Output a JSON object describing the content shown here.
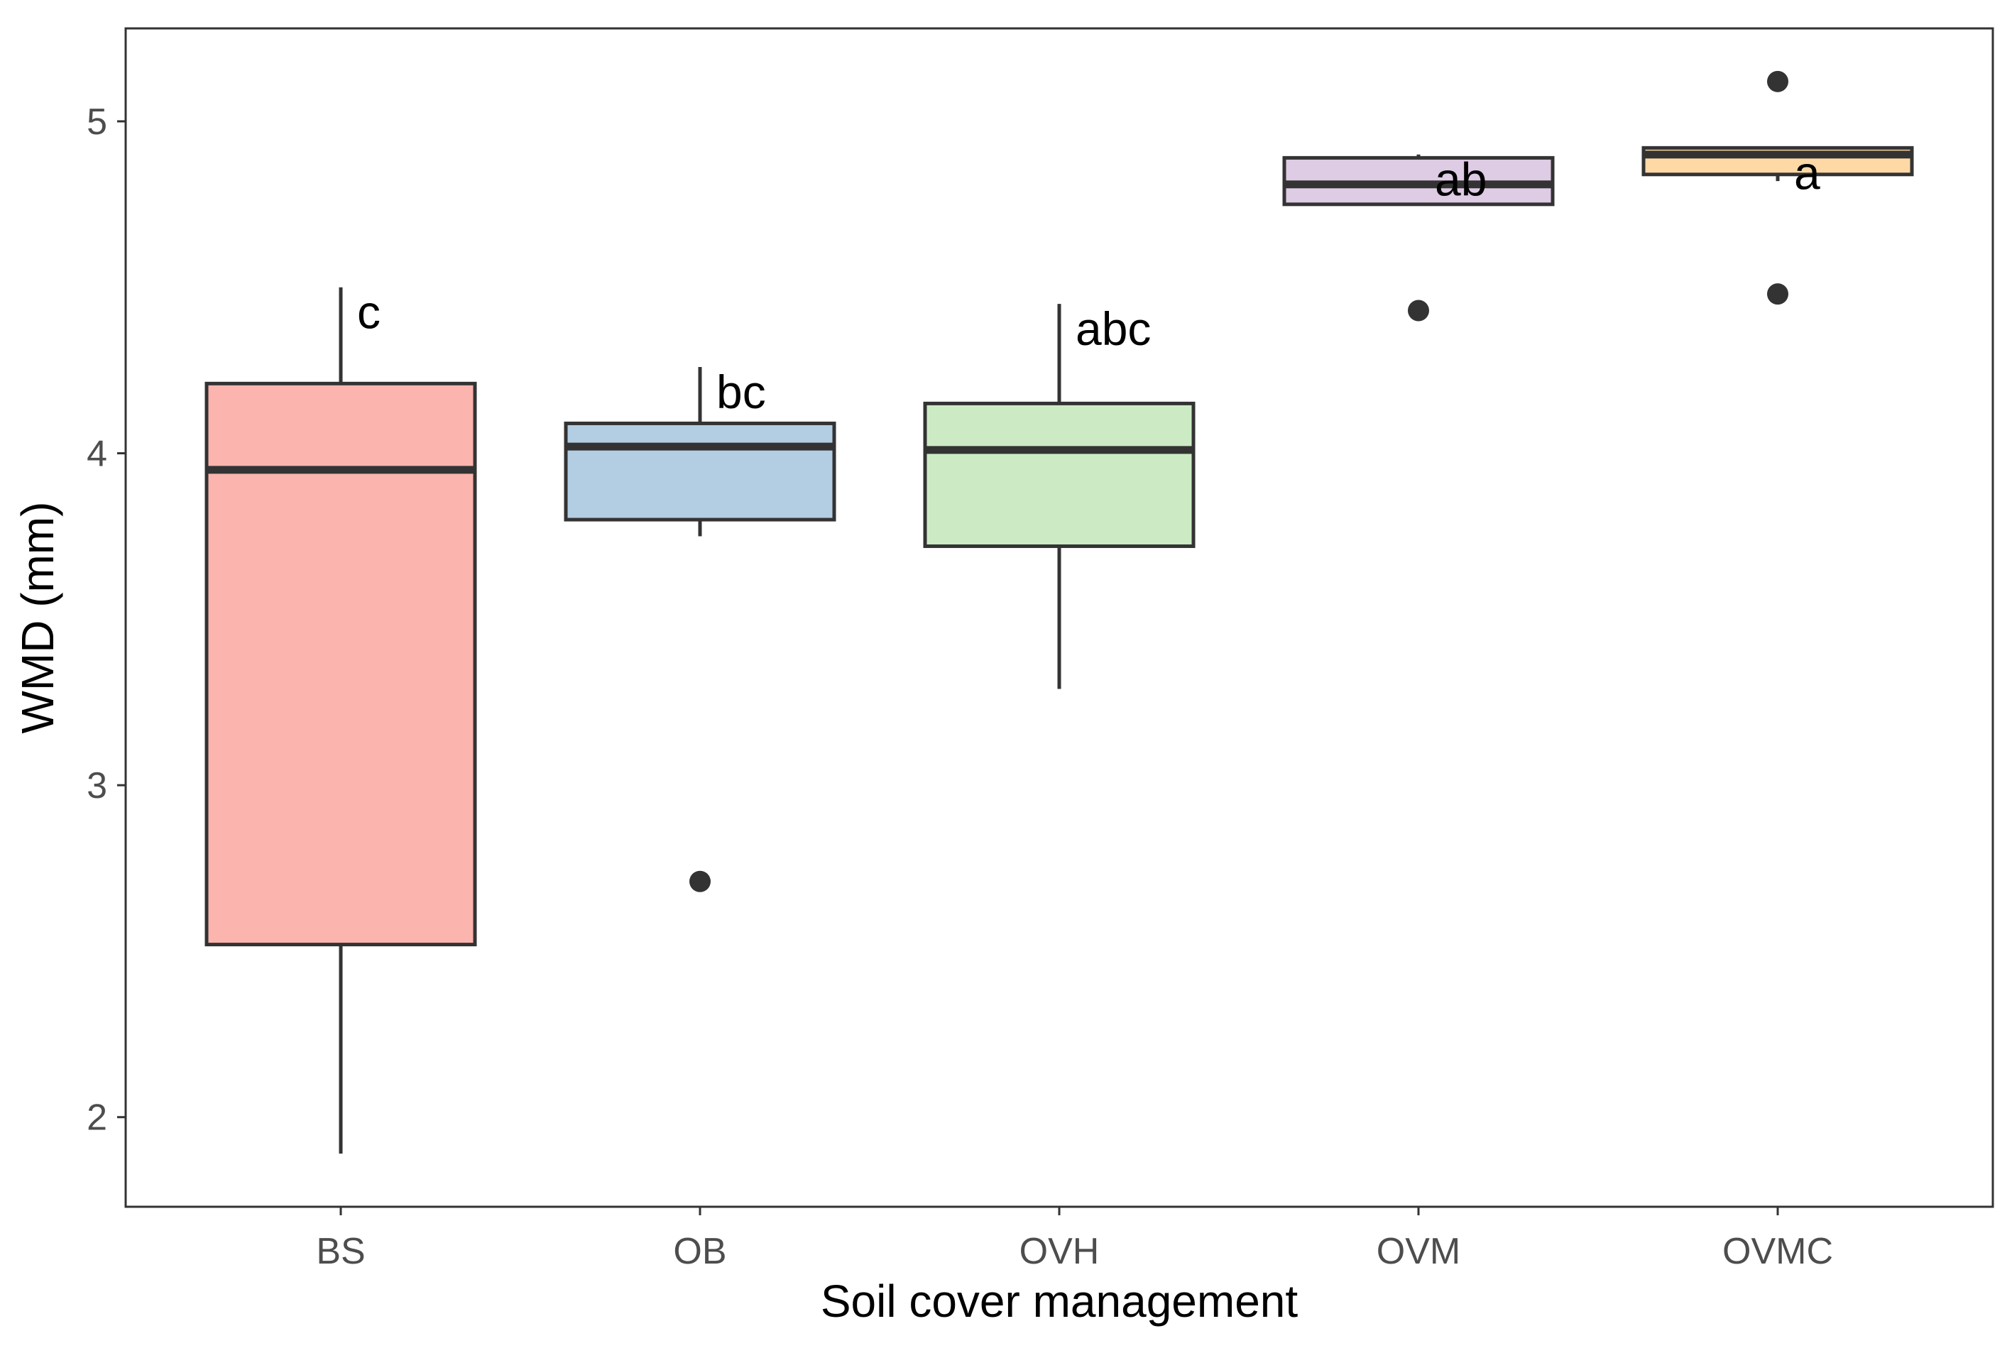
{
  "chart_data": {
    "type": "boxplot",
    "title": "",
    "xlabel": "Soil cover management",
    "ylabel": "WMD (mm)",
    "ylim": [
      1.73,
      5.28
    ],
    "yticks": [
      2,
      3,
      4,
      5
    ],
    "yticklabels": [
      "2",
      "3",
      "4",
      "5"
    ],
    "grid": false,
    "legend": "none",
    "categories": [
      "BS",
      "OB",
      "OVH",
      "OVM",
      "OVMC"
    ],
    "boxes": [
      {
        "category": "BS",
        "whisker_low": 1.89,
        "q1": 2.52,
        "median": 3.95,
        "q3": 4.21,
        "whisker_high": 4.5,
        "outliers": [],
        "letter": "c",
        "fill": "#fbb4ae"
      },
      {
        "category": "OB",
        "whisker_low": 3.75,
        "q1": 3.8,
        "median": 4.02,
        "q3": 4.09,
        "whisker_high": 4.26,
        "outliers": [
          2.71
        ],
        "letter": "bc",
        "fill": "#b3cde3"
      },
      {
        "category": "OVH",
        "whisker_low": 3.29,
        "q1": 3.72,
        "median": 4.01,
        "q3": 4.15,
        "whisker_high": 4.45,
        "outliers": [],
        "letter": "abc",
        "fill": "#ccebc5"
      },
      {
        "category": "OVM",
        "whisker_low": 4.75,
        "q1": 4.75,
        "median": 4.81,
        "q3": 4.89,
        "whisker_high": 4.9,
        "outliers": [
          4.43
        ],
        "letter": "ab",
        "fill": "#decbe4"
      },
      {
        "category": "OVMC",
        "whisker_low": 4.82,
        "q1": 4.84,
        "median": 4.9,
        "q3": 4.92,
        "whisker_high": 4.92,
        "outliers": [
          5.12,
          4.48
        ],
        "letter": "a",
        "fill": "#fed9a6"
      }
    ],
    "colors": {
      "box_outline": "#333333",
      "panel_border": "#333333",
      "tick_label": "#4d4d4d",
      "axis_title": "#000000"
    }
  }
}
